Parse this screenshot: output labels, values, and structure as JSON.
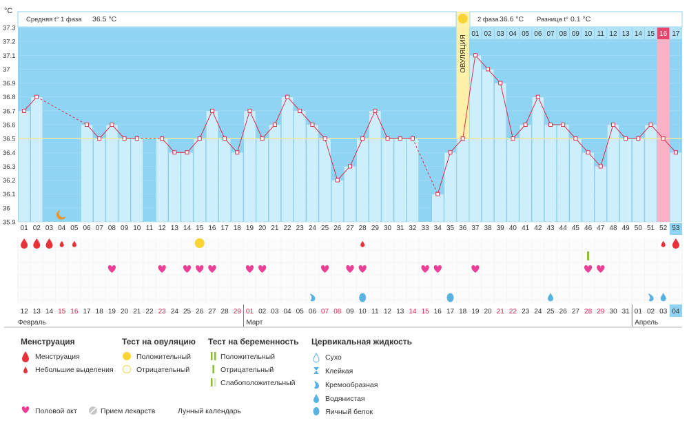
{
  "header": {
    "unit": "°C",
    "phase1_label": "Средняя t° 1 фаза",
    "phase1_value": "36.5 °C",
    "phase2_label": "2 фаза",
    "phase2_value": "36.6 °C",
    "diff_label": "Разница t°",
    "diff_value": "0.1 °C",
    "ovulation_label": "ОВУЛЯЦИЯ"
  },
  "chart_data": {
    "type": "line",
    "title": "",
    "ylabel": "°C",
    "ylim": [
      35.9,
      37.3
    ],
    "yticks": [
      "37.3",
      "37.2",
      "37.1",
      "37",
      "36.9",
      "36.8",
      "36.7",
      "36.6",
      "36.5",
      "36.4",
      "36.3",
      "36.2",
      "36.1",
      "36",
      "35.9"
    ],
    "cycle_days": [
      "01",
      "02",
      "03",
      "04",
      "05",
      "06",
      "07",
      "08",
      "09",
      "10",
      "11",
      "12",
      "13",
      "14",
      "15",
      "16",
      "17",
      "18",
      "19",
      "20",
      "21",
      "22",
      "23",
      "24",
      "25",
      "26",
      "27",
      "28",
      "29",
      "30",
      "31",
      "32",
      "33",
      "34",
      "35",
      "36",
      "37",
      "38",
      "39",
      "40",
      "41",
      "42",
      "43",
      "44",
      "45",
      "46",
      "47",
      "48",
      "49",
      "50",
      "51",
      "52",
      "53"
    ],
    "temperatures": [
      36.7,
      36.8,
      null,
      null,
      null,
      36.6,
      36.5,
      36.6,
      36.5,
      36.5,
      null,
      36.5,
      36.4,
      36.4,
      36.5,
      36.7,
      36.5,
      36.4,
      36.7,
      36.5,
      36.6,
      36.8,
      36.7,
      36.6,
      36.5,
      36.2,
      36.3,
      36.5,
      36.7,
      36.5,
      36.5,
      36.5,
      null,
      36.1,
      36.4,
      36.5,
      37.1,
      37.0,
      36.9,
      36.5,
      36.6,
      36.8,
      36.6,
      36.6,
      36.5,
      36.4,
      36.3,
      36.6,
      36.5,
      36.5,
      36.6,
      36.5,
      36.4
    ],
    "coverline": 36.5,
    "ovulation_day": 36,
    "phase2_days": [
      "01",
      "02",
      "03",
      "04",
      "05",
      "06",
      "07",
      "08",
      "09",
      "10",
      "11",
      "12",
      "13",
      "14",
      "15",
      "16",
      "17"
    ],
    "highlighted_phase2_day": "16",
    "current_cycle_day": "53",
    "calendar_dates": [
      "12",
      "13",
      "14",
      "15",
      "16",
      "17",
      "18",
      "19",
      "20",
      "21",
      "22",
      "23",
      "24",
      "25",
      "26",
      "27",
      "28",
      "29",
      "01",
      "02",
      "03",
      "04",
      "05",
      "06",
      "07",
      "08",
      "09",
      "10",
      "11",
      "12",
      "13",
      "14",
      "15",
      "16",
      "17",
      "18",
      "19",
      "20",
      "21",
      "22",
      "23",
      "24",
      "25",
      "26",
      "27",
      "28",
      "29",
      "30",
      "31",
      "01",
      "02",
      "03",
      "04"
    ],
    "weekend_dates_idx": [
      3,
      4,
      11,
      17,
      18,
      24,
      25,
      31,
      32,
      38,
      39,
      45,
      46
    ],
    "months": [
      {
        "name": "Февраль",
        "start": 0
      },
      {
        "name": "Март",
        "start": 18
      },
      {
        "name": "Апрель",
        "start": 49
      }
    ],
    "current_date": "04",
    "menstruation": [
      1,
      2,
      3
    ],
    "spotting": [
      4,
      5,
      28,
      52
    ],
    "menstruation_late": [
      53
    ],
    "ovulation_test_positive": [
      15
    ],
    "pregnancy_test_negative": [
      46
    ],
    "intercourse": [
      8,
      12,
      14,
      15,
      16,
      19,
      20,
      25,
      27,
      28,
      33,
      34,
      37,
      46,
      47
    ],
    "cervical_creamy": [
      24,
      51
    ],
    "cervical_watery": [
      43,
      52
    ],
    "cervical_eggwhite": [
      28,
      35
    ],
    "moon_day": 4
  },
  "legend": {
    "menstruation_title": "Менструация",
    "menstruation": "Менструация",
    "spotting": "Небольшие выделения",
    "ovulation_test_title": "Тест на овуляцию",
    "ovulation_positive": "Положительный",
    "ovulation_negative": "Отрицательный",
    "pregnancy_test_title": "Тест на беременность",
    "pregnancy_positive": "Положительный",
    "pregnancy_negative": "Отрицательный",
    "pregnancy_weak": "Слабоположительный",
    "cervical_title": "Цервикальная жидкость",
    "cervical_dry": "Сухо",
    "cervical_sticky": "Клейкая",
    "cervical_creamy": "Кремообразная",
    "cervical_watery": "Водянистая",
    "cervical_eggwhite": "Яичный белок",
    "intercourse": "Половой акт",
    "medication": "Прием лекарств",
    "lunar": "Лунный календарь"
  },
  "colors": {
    "bg_blue": "#8fd4f2",
    "bar": "#cdeffc",
    "bar_border": "#93c9e4",
    "line": "#dd2c4b",
    "coverline": "#f2e79a",
    "ovulation": "#fff2a8",
    "highlight_pink": "#f9b3c5",
    "drop_red": "#e8323a",
    "heart": "#ee3f97",
    "cervical": "#59b2e2",
    "test_green": "#8cbd2a",
    "sun": "#fcd335",
    "moon": "#f0932b"
  }
}
